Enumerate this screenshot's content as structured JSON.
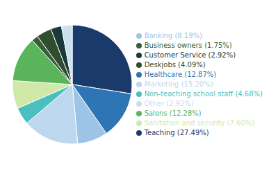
{
  "chart_data": {
    "type": "pie",
    "categories": [
      "Teaching (27.49%)",
      "Healthcare (12.87%)",
      "Banking (8.19%)",
      "Marketing (15.20%)",
      "Non-teaching school staff (4.68%)",
      "Sanitation and security (7.60%)",
      "Salons (12.28%)",
      "Business owners (1.75%)",
      "Deskjobs (4.09%)",
      "Customer Service (2.92%)",
      "Other (2.92%)"
    ],
    "values": [
      27.49,
      12.87,
      8.19,
      15.2,
      4.68,
      7.6,
      12.28,
      1.75,
      4.09,
      2.92,
      2.92
    ],
    "colors": [
      "#1a3a6b",
      "#2e75b6",
      "#9dc3e6",
      "#bdd7ee",
      "#4abfbf",
      "#d0e8a8",
      "#5ab55a",
      "#375e37",
      "#2e4e2e",
      "#1a3a3a",
      "#c8e0f0"
    ],
    "legend": "right"
  }
}
